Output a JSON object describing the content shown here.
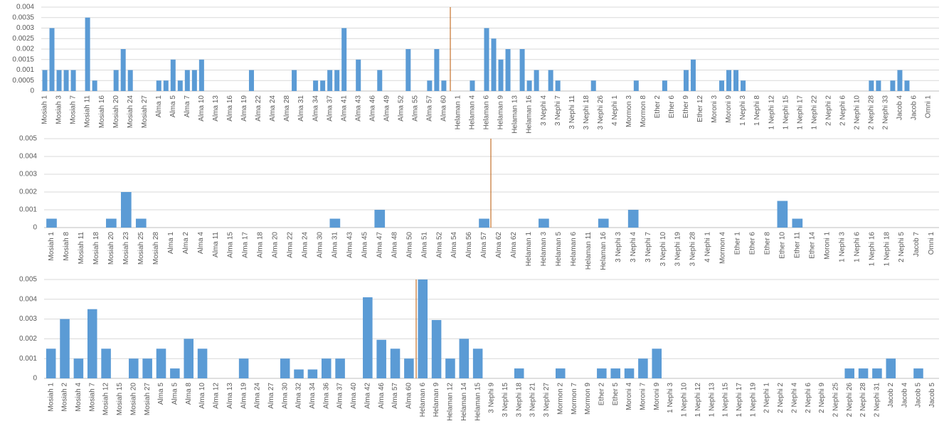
{
  "chart_data": [
    {
      "type": "bar",
      "color": "#5b9bd5",
      "grid": true,
      "ylim": [
        0,
        0.004
      ],
      "yticks": [
        0,
        0.0005,
        0.001,
        0.0015,
        0.002,
        0.0025,
        0.003,
        0.0035,
        0.004
      ],
      "categories": [
        "Mosiah 1",
        null,
        "Mosiah 3",
        null,
        "Mosiah 7",
        null,
        "Mosiah 11",
        null,
        "Mosiah 16",
        null,
        "Mosiah 20",
        null,
        "Mosiah 24",
        null,
        "Mosiah 27",
        null,
        "Alma 1",
        null,
        "Alma 5",
        null,
        "Alma 7",
        null,
        "Alma 10",
        null,
        "Alma 13",
        null,
        "Alma 16",
        null,
        "Alma 19",
        null,
        "Alma 22",
        null,
        "Alma 24",
        null,
        "Alma 28",
        null,
        "Alma 31",
        null,
        "Alma 34",
        null,
        "Alma 37",
        null,
        "Alma 41",
        null,
        "Alma 43",
        null,
        "Alma 46",
        null,
        "Alma 49",
        null,
        "Alma 52",
        null,
        "Alma 55",
        null,
        "Alma 57",
        null,
        "Alma 60",
        null,
        "Helaman 1",
        null,
        "Helaman 4",
        null,
        "Helaman 6",
        null,
        "Helaman 9",
        null,
        "Helaman 13",
        null,
        "Helaman 16",
        null,
        "3 Nephi 4",
        null,
        "3 Nephi 7",
        null,
        "3 Nephi 11",
        null,
        "3 Nephi 18",
        null,
        "3 Nephi 26",
        null,
        "4 Nephi 1",
        null,
        "Mormon 3",
        null,
        "Mormon 8",
        null,
        "Ether 2",
        null,
        "Ether 6",
        null,
        "Ether 9",
        null,
        "Ether 12",
        null,
        "Moroni 3",
        null,
        "Moroni 9",
        null,
        "1 Nephi 3",
        null,
        "1 Nephi 8",
        null,
        "1 Nephi 12",
        null,
        "1 Nephi 15",
        null,
        "1 Nephi 17",
        null,
        "1 Nephi 22",
        null,
        "2 Nephi 2",
        null,
        "2 Nephi 6",
        null,
        "2 Nephi 10",
        null,
        "2 Nephi 28",
        null,
        "2 Nephi 33",
        null,
        "Jacob 4",
        null,
        "Jacob 6",
        null,
        "Omni 1",
        null
      ],
      "values": [
        0.001,
        0.003,
        0.001,
        0.001,
        0.001,
        0,
        0.0035,
        0.0005,
        0,
        0,
        0.001,
        0.002,
        0.001,
        0,
        0,
        0,
        0.0005,
        0.0005,
        0.0015,
        0.0005,
        0.001,
        0.001,
        0.0015,
        0,
        0,
        0,
        0,
        0,
        0,
        0.001,
        0,
        0,
        0,
        0,
        0,
        0.001,
        0,
        0,
        0.0005,
        0.0005,
        0.001,
        0.001,
        0.003,
        0,
        0.0015,
        0,
        0,
        0.001,
        0,
        0,
        0,
        0.002,
        0,
        0,
        0.0005,
        0.002,
        0.0005,
        0,
        0,
        0,
        0.0005,
        0,
        0.003,
        0.0025,
        0.0015,
        0.002,
        0,
        0.002,
        0.0005,
        0.001,
        0,
        0.001,
        0.0005,
        0,
        0,
        0,
        0,
        0.0005,
        0,
        0,
        0,
        0,
        0,
        0.0005,
        0,
        0,
        0,
        0.0005,
        0,
        0,
        0.001,
        0.0015,
        0,
        0,
        0,
        0.0005,
        0.001,
        0.001,
        0.0005,
        0,
        0,
        0,
        0,
        0,
        0,
        0,
        0,
        0,
        0,
        0,
        0,
        0,
        0,
        0,
        0,
        0,
        0.0005,
        0.0005,
        0,
        0.0005,
        0.001,
        0.0005,
        0,
        0,
        0,
        0
      ]
    },
    {
      "type": "bar",
      "color": "#5b9bd5",
      "grid": true,
      "ylim": [
        0,
        0.005
      ],
      "yticks": [
        0,
        0.001,
        0.002,
        0.003,
        0.004,
        0.005
      ],
      "categories": [
        "Mosiah 1",
        "Mosiah 8",
        "Mosiah 11",
        "Mosiah 18",
        "Mosiah 20",
        "Mosiah 23",
        "Mosiah 25",
        "Mosiah 28",
        "Alma 1",
        "Alma 2",
        "Alma 4",
        "Alma 11",
        "Alma 15",
        "Alma 17",
        "Alma 18",
        "Alma 20",
        "Alma 22",
        "Alma 24",
        "Alma 30",
        "Alma 31",
        "Alma 43",
        "Alma 45",
        "Alma 47",
        "Alma 48",
        "Alma 50",
        "Alma 51",
        "Alma 52",
        "Alma 54",
        "Alma 56",
        "Alma 57",
        "Alma 62",
        "Alma 62",
        "Helaman 1",
        "Helaman 3",
        "Helaman 5",
        "Helaman 6",
        "Helaman 11",
        "Helaman 16",
        "3 Nephi 3",
        "3 Nephi 4",
        "3 Nephi 7",
        "3 Nephi 10",
        "3 Nephi 19",
        "3 Nephi 28",
        "4 Nephi 1",
        "Mormon 4",
        "Ether 1",
        "Ether 6",
        "Ether 8",
        "Ether 10",
        "Ether 11",
        "Ether 14",
        "Moroni 1",
        "1 Nephi 3",
        "1 Nephi 6",
        "1 Nephi 16",
        "1 Nephi 18",
        "2 Nephi 5",
        "Jacob 7",
        "Omni 1"
      ],
      "values": [
        0.0005,
        0,
        0,
        0,
        0.0005,
        0.002,
        0.0005,
        0,
        0,
        0,
        0,
        0,
        0,
        0,
        0,
        0,
        0,
        0,
        0,
        0.0005,
        0,
        0,
        0.001,
        0,
        0,
        0,
        0,
        0,
        0,
        0.0005,
        0,
        0,
        0,
        0.0005,
        0,
        0,
        0,
        0.0005,
        0,
        0.001,
        0,
        0,
        0,
        0,
        0,
        0,
        0,
        0,
        0,
        0.0015,
        0.0005,
        0,
        0,
        0,
        0,
        0,
        0,
        0,
        0,
        0
      ]
    },
    {
      "type": "bar",
      "color": "#5b9bd5",
      "grid": true,
      "ylim": [
        0,
        0.005
      ],
      "yticks": [
        0,
        0.001,
        0.002,
        0.003,
        0.004,
        0.005
      ],
      "categories": [
        "Mosiah 1",
        "Mosiah 2",
        "Mosiah 4",
        "Mosiah 7",
        "Mosiah 12",
        "Mosiah 15",
        "Mosiah 20",
        "Mosiah 27",
        "Alma 5",
        "Alma 5",
        "Alma 8",
        "Alma 10",
        "Alma 12",
        "Alma 13",
        "Alma 19",
        "Alma 24",
        "Alma 27",
        "Alma 30",
        "Alma 32",
        "Alma 34",
        "Alma 36",
        "Alma 37",
        "Alma 40",
        "Alma 42",
        "Alma 46",
        "Alma 57",
        "Alma 60",
        "Helaman 6",
        "Helaman 9",
        "Helaman 12",
        "Helaman 14",
        "Helaman 15",
        "3 Nephi 9",
        "3 Nephi 15",
        "3 Nephi 18",
        "3 Nephi 21",
        "3 Nephi 27",
        "Mormon 2",
        "Mormon 7",
        "Mormon 9",
        "Ether 2",
        "Ether 5",
        "Moroni 4",
        "Moroni 7",
        "Moroni 9",
        "1 Nephi 3",
        "1 Nephi 10",
        "1 Nephi 12",
        "1 Nephi 13",
        "1 Nephi 15",
        "1 Nephi 17",
        "1 Nephi 19",
        "2 Nephi 1",
        "2 Nephi 2",
        "2 Nephi 4",
        "2 Nephi 6",
        "2 Nephi 9",
        "2 Nephi 25",
        "2 Nephi 26",
        "2 Nephi 28",
        "2 Nephi 31",
        "Jacob 2",
        "Jacob 4",
        "Jacob 5",
        "Jacob 5"
      ],
      "values": [
        0.0015,
        0.003,
        0.001,
        0.0035,
        0.0015,
        0,
        0.001,
        0.001,
        0.0015,
        0.0005,
        0.002,
        0.0015,
        0,
        0,
        0.001,
        0,
        0,
        0.001,
        0.00045,
        0.00045,
        0.001,
        0.001,
        0,
        0.0041,
        0.00195,
        0.0015,
        0.001,
        0.005,
        0.00295,
        0.001,
        0.002,
        0.0015,
        0,
        0,
        0.0005,
        0,
        0,
        0.0005,
        0,
        0,
        0.0005,
        0.0005,
        0.0005,
        0.001,
        0.0015,
        0,
        0,
        0,
        0,
        0,
        0,
        0,
        0,
        0,
        0,
        0,
        0,
        0,
        0.0005,
        0.0005,
        0.0005,
        0.001,
        0,
        0.0005,
        0
      ]
    }
  ]
}
